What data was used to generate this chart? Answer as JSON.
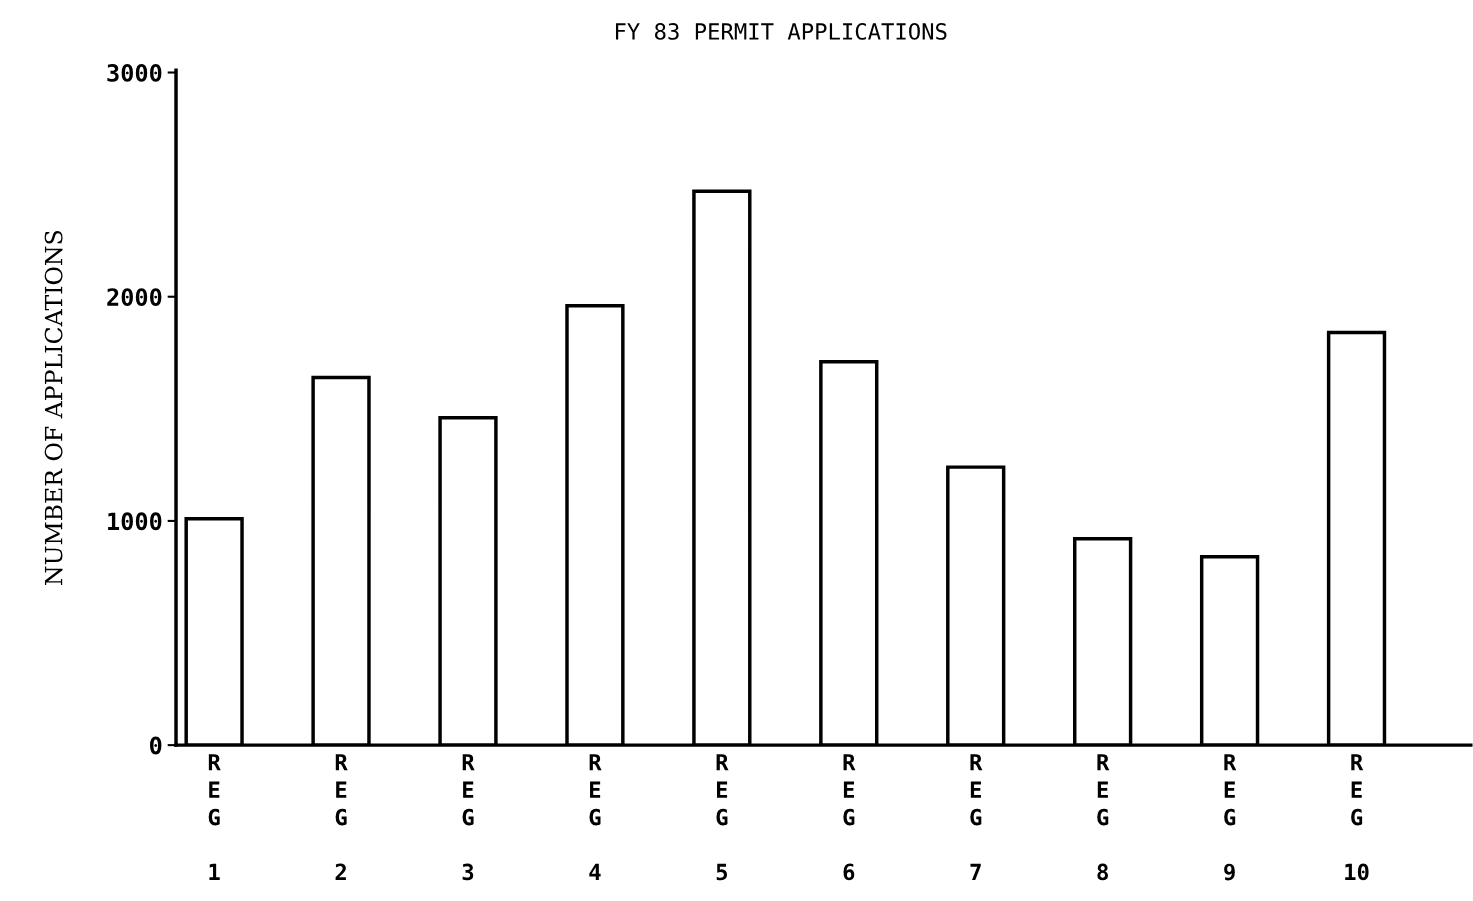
{
  "chart_data": {
    "type": "bar",
    "title": "FY 83 PERMIT APPLICATIONS",
    "ylabel": "NUMBER OF APPLICATIONS",
    "categories": [
      "R\nE\nG\n\n1",
      "R\nE\nG\n\n2",
      "R\nE\nG\n\n3",
      "R\nE\nG\n\n4",
      "R\nE\nG\n\n5",
      "R\nE\nG\n\n6",
      "R\nE\nG\n\n7",
      "R\nE\nG\n\n8",
      "R\nE\nG\n\n9",
      "R\nE\nG\n\n10"
    ],
    "values": [
      1010,
      1640,
      1460,
      1960,
      2470,
      1710,
      1240,
      920,
      840,
      1840
    ],
    "color": "#ffffff",
    "ylim": [
      0,
      3010
    ],
    "yticks": [
      0,
      1000,
      2000,
      3000
    ],
    "grid": false,
    "legend": false
  }
}
